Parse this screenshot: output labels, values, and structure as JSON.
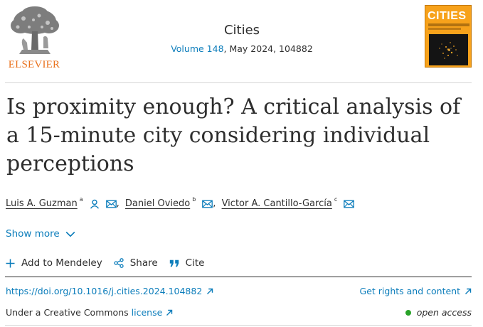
{
  "publisher": {
    "name": "ELSEVIER"
  },
  "journal": {
    "title": "Cities",
    "volume_link": "Volume 148",
    "issue_rest": ", May 2024, 104882",
    "cover_title": "CITIES"
  },
  "article": {
    "title": "Is proximity enough? A critical analysis of a 15-minute city considering individual perceptions"
  },
  "authors": [
    {
      "name": "Luis A. Guzman",
      "sup": "a",
      "icons": [
        "person-icon",
        "mail-icon"
      ]
    },
    {
      "name": "Daniel Oviedo",
      "sup": "b",
      "icons": [
        "mail-icon"
      ]
    },
    {
      "name": "Victor A. Cantillo-García",
      "sup": "c",
      "icons": [
        "mail-icon"
      ]
    }
  ],
  "author_separator": ",",
  "show_more": {
    "label": "Show more"
  },
  "toolbar": {
    "add_label": "Add to Mendeley",
    "share_label": "Share",
    "cite_label": "Cite"
  },
  "links": {
    "doi": "https://doi.org/10.1016/j.cities.2024.104882",
    "rights": "Get rights and content"
  },
  "license": {
    "prefix": "Under a Creative Commons",
    "link": "license"
  },
  "access": {
    "label": "open access"
  },
  "colors": {
    "link": "#0c7dbb",
    "text": "#2e2e2e",
    "elsevier_orange": "#e9711c",
    "cover_orange": "#f7a21b",
    "open_access_green": "#29a329"
  }
}
